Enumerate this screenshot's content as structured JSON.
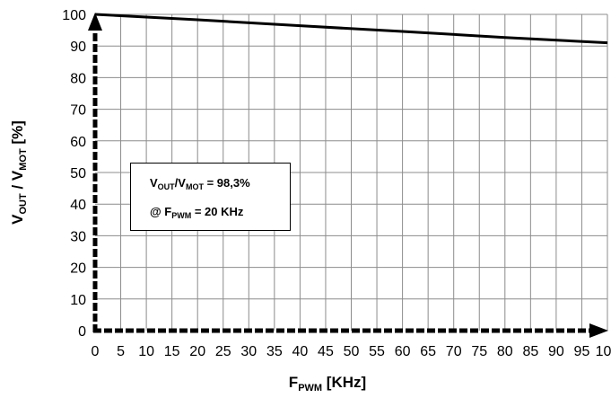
{
  "chart_data": {
    "type": "line",
    "x_axis": {
      "label_main": "F",
      "label_sub": "PWM",
      "label_unit": " [KHz]",
      "range": [
        0,
        100
      ],
      "ticks": [
        0,
        5,
        10,
        15,
        20,
        25,
        30,
        35,
        40,
        45,
        50,
        55,
        60,
        65,
        70,
        75,
        80,
        85,
        90,
        95,
        100
      ]
    },
    "y_axis": {
      "label_parts": [
        {
          "text": "V",
          "sub": false
        },
        {
          "text": "OUT",
          "sub": true
        },
        {
          "text": " / V",
          "sub": false
        },
        {
          "text": "MOT",
          "sub": true
        },
        {
          "text": " [%]",
          "sub": false
        }
      ],
      "range": [
        0,
        100
      ],
      "ticks": [
        0,
        10,
        20,
        30,
        40,
        50,
        60,
        70,
        80,
        90,
        100
      ]
    },
    "grid": true,
    "series": [
      {
        "color": "#000000",
        "points": [
          [
            0,
            100
          ],
          [
            20,
            98.3
          ],
          [
            40,
            96.4
          ],
          [
            60,
            94.6
          ],
          [
            80,
            92.7
          ],
          [
            100,
            91.0
          ]
        ]
      }
    ],
    "annotation": {
      "line1": [
        {
          "text": "V",
          "sub": false
        },
        {
          "text": "OUT",
          "sub": true
        },
        {
          "text": "/V",
          "sub": false
        },
        {
          "text": "MOT",
          "sub": true
        },
        {
          "text": " = 98,3%",
          "sub": false
        }
      ],
      "line2": [
        {
          "text": "@ F",
          "sub": false
        },
        {
          "text": "PWM",
          "sub": true
        },
        {
          "text": " = 20 KHz",
          "sub": false
        }
      ]
    }
  }
}
